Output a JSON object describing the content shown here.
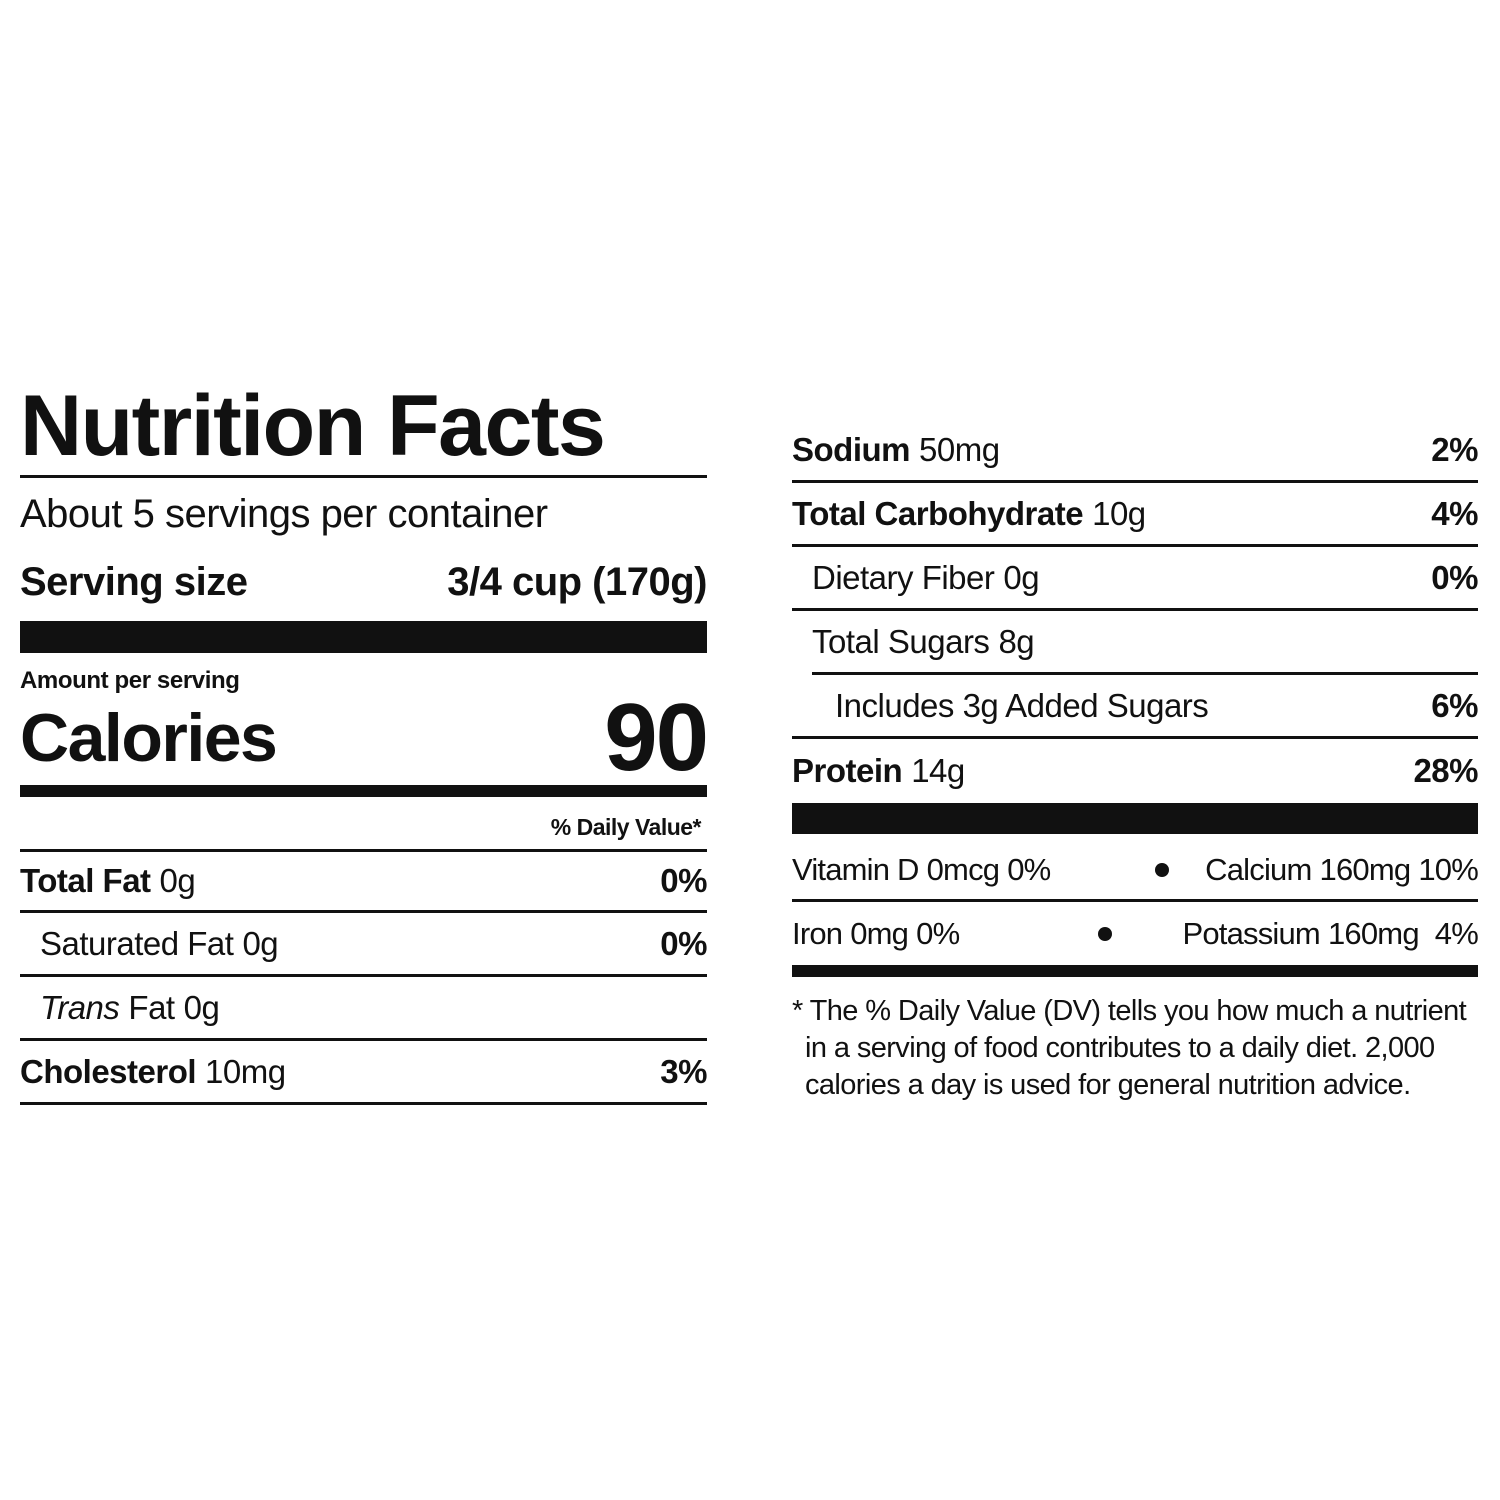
{
  "title": "Nutrition Facts",
  "servings_per_container": "About 5 servings per container",
  "serving_size": {
    "label": "Serving size",
    "value": "3/4 cup (170g)"
  },
  "amount_per_serving": "Amount per serving",
  "calories": {
    "label": "Calories",
    "value": 90
  },
  "daily_value_header": "% Daily Value*",
  "nutrients": [
    [
      {
        "name": "Total Fat",
        "amount": "0g",
        "dv": "0%",
        "sub": [
          {
            "name": "Saturated Fat",
            "amount": "0g",
            "dv": "0%"
          },
          {
            "italic_prefix": "Trans",
            "name": "Fat",
            "amount": "0g"
          }
        ]
      },
      {
        "name": "Cholesterol",
        "amount": "10mg",
        "dv": "3%"
      }
    ],
    [
      {
        "name": "Sodium",
        "amount": "50mg",
        "dv": "2%"
      },
      {
        "name": "Total Carbohydrate",
        "amount": "10g",
        "dv": "4%",
        "sub": [
          {
            "name": "Dietary Fiber",
            "amount": "0g",
            "dv": "0%"
          },
          {
            "name": "Total Sugars",
            "amount": "8g",
            "sub": [
              {
                "name": "Includes 3g Added Sugars",
                "dv": "6%"
              }
            ]
          }
        ]
      },
      {
        "name": "Protein",
        "amount": "14g",
        "dv": "28%"
      }
    ]
  ],
  "vitamins": [
    [
      {
        "name": "Vitamin D",
        "amount": "0mcg",
        "dv": "0%"
      },
      {
        "name": "Calcium",
        "amount": "160mg",
        "dv": "10%"
      }
    ],
    [
      {
        "name": "Iron",
        "amount": "0mg",
        "dv": "0%"
      },
      {
        "name": "Potassium",
        "amount": "160mg",
        "dv": "4%"
      }
    ]
  ],
  "footnote": [
    "* The % Daily Value (DV) tells you how much a nutrient",
    "in a serving of food contributes to a daily diet. 2,000",
    "calories a day is used for general nutrition advice."
  ]
}
